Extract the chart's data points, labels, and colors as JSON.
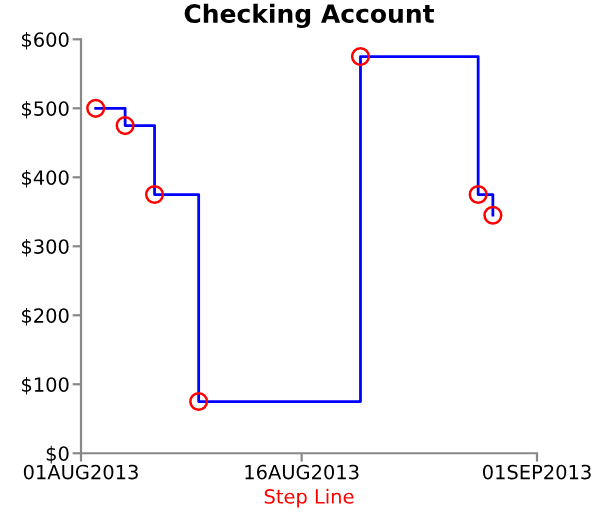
{
  "chart_data": {
    "type": "step",
    "title": "Checking Account",
    "xlabel": "Step Line",
    "x": [
      "2013-08-02",
      "2013-08-04",
      "2013-08-06",
      "2013-08-09",
      "2013-08-20",
      "2013-08-28",
      "2013-08-29"
    ],
    "series": [
      {
        "color": "#0000ff",
        "values": [
          500,
          475,
          375,
          75,
          575,
          375,
          345
        ]
      }
    ],
    "xlim": [
      "2013-08-01",
      "2013-09-01"
    ],
    "xticks": [
      {
        "value": "2013-08-01",
        "label": "01AUG2013"
      },
      {
        "value": "2013-08-16",
        "label": "16AUG2013"
      },
      {
        "value": "2013-09-01",
        "label": "01SEP2013"
      }
    ],
    "ylim": [
      0,
      600
    ],
    "yticks": [
      {
        "value": 0,
        "label": "$0"
      },
      {
        "value": 100,
        "label": "$100"
      },
      {
        "value": 200,
        "label": "$200"
      },
      {
        "value": 300,
        "label": "$300"
      },
      {
        "value": 400,
        "label": "$400"
      },
      {
        "value": 500,
        "label": "$500"
      },
      {
        "value": 600,
        "label": "$600"
      }
    ],
    "marker": "circle",
    "grid": false,
    "legend": false
  }
}
